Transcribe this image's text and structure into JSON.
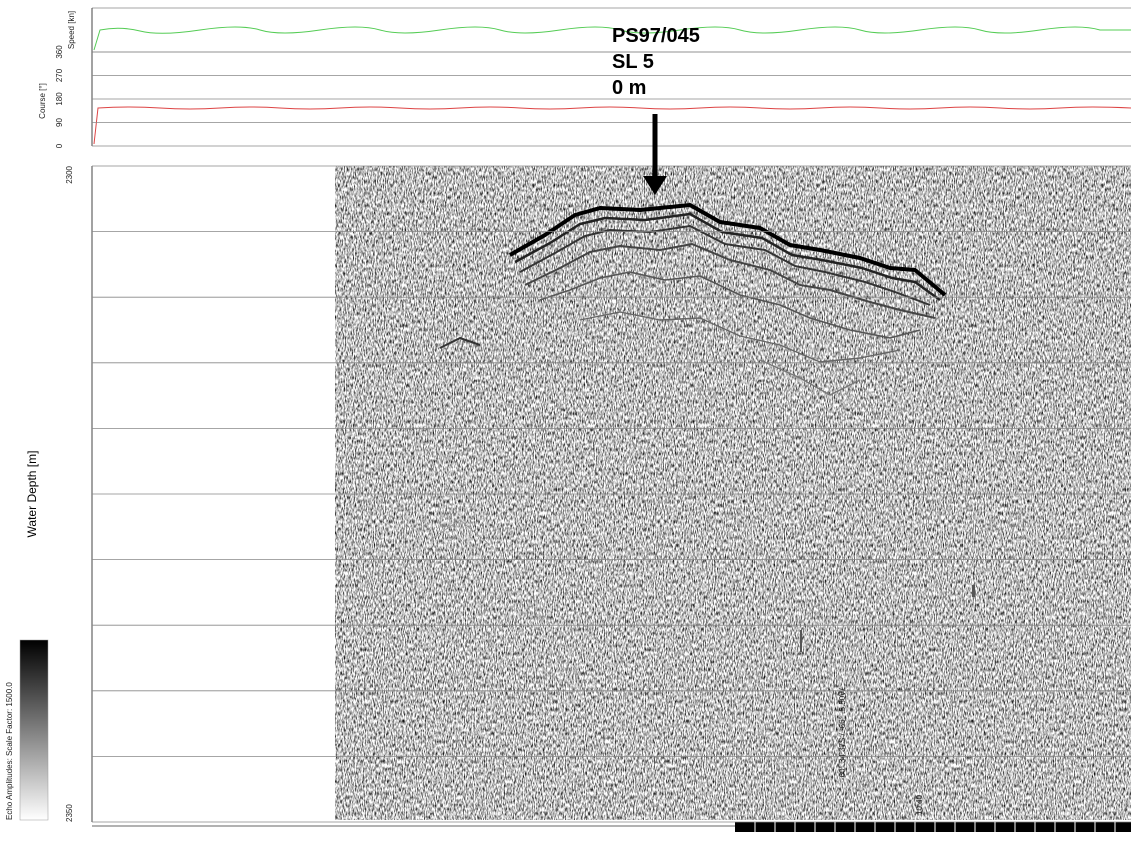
{
  "top_panel": {
    "speed_label": "Speed [kn]",
    "course_label": "Course [°]",
    "course_ticks": [
      "360",
      "270",
      "180",
      "90",
      "0"
    ]
  },
  "depth_panel": {
    "label": "Water Depth [m]",
    "top_tick": "2300",
    "bottom_tick": "2350"
  },
  "annotation": {
    "lines": [
      "PS97/045",
      "SL 5",
      "0 m"
    ]
  },
  "position_label": "-60° 34.37S / -66° -5.50W",
  "time_label": "10:40",
  "colorbar_label": "Echo Amplitudes: Scale Factor: 1500.0"
}
